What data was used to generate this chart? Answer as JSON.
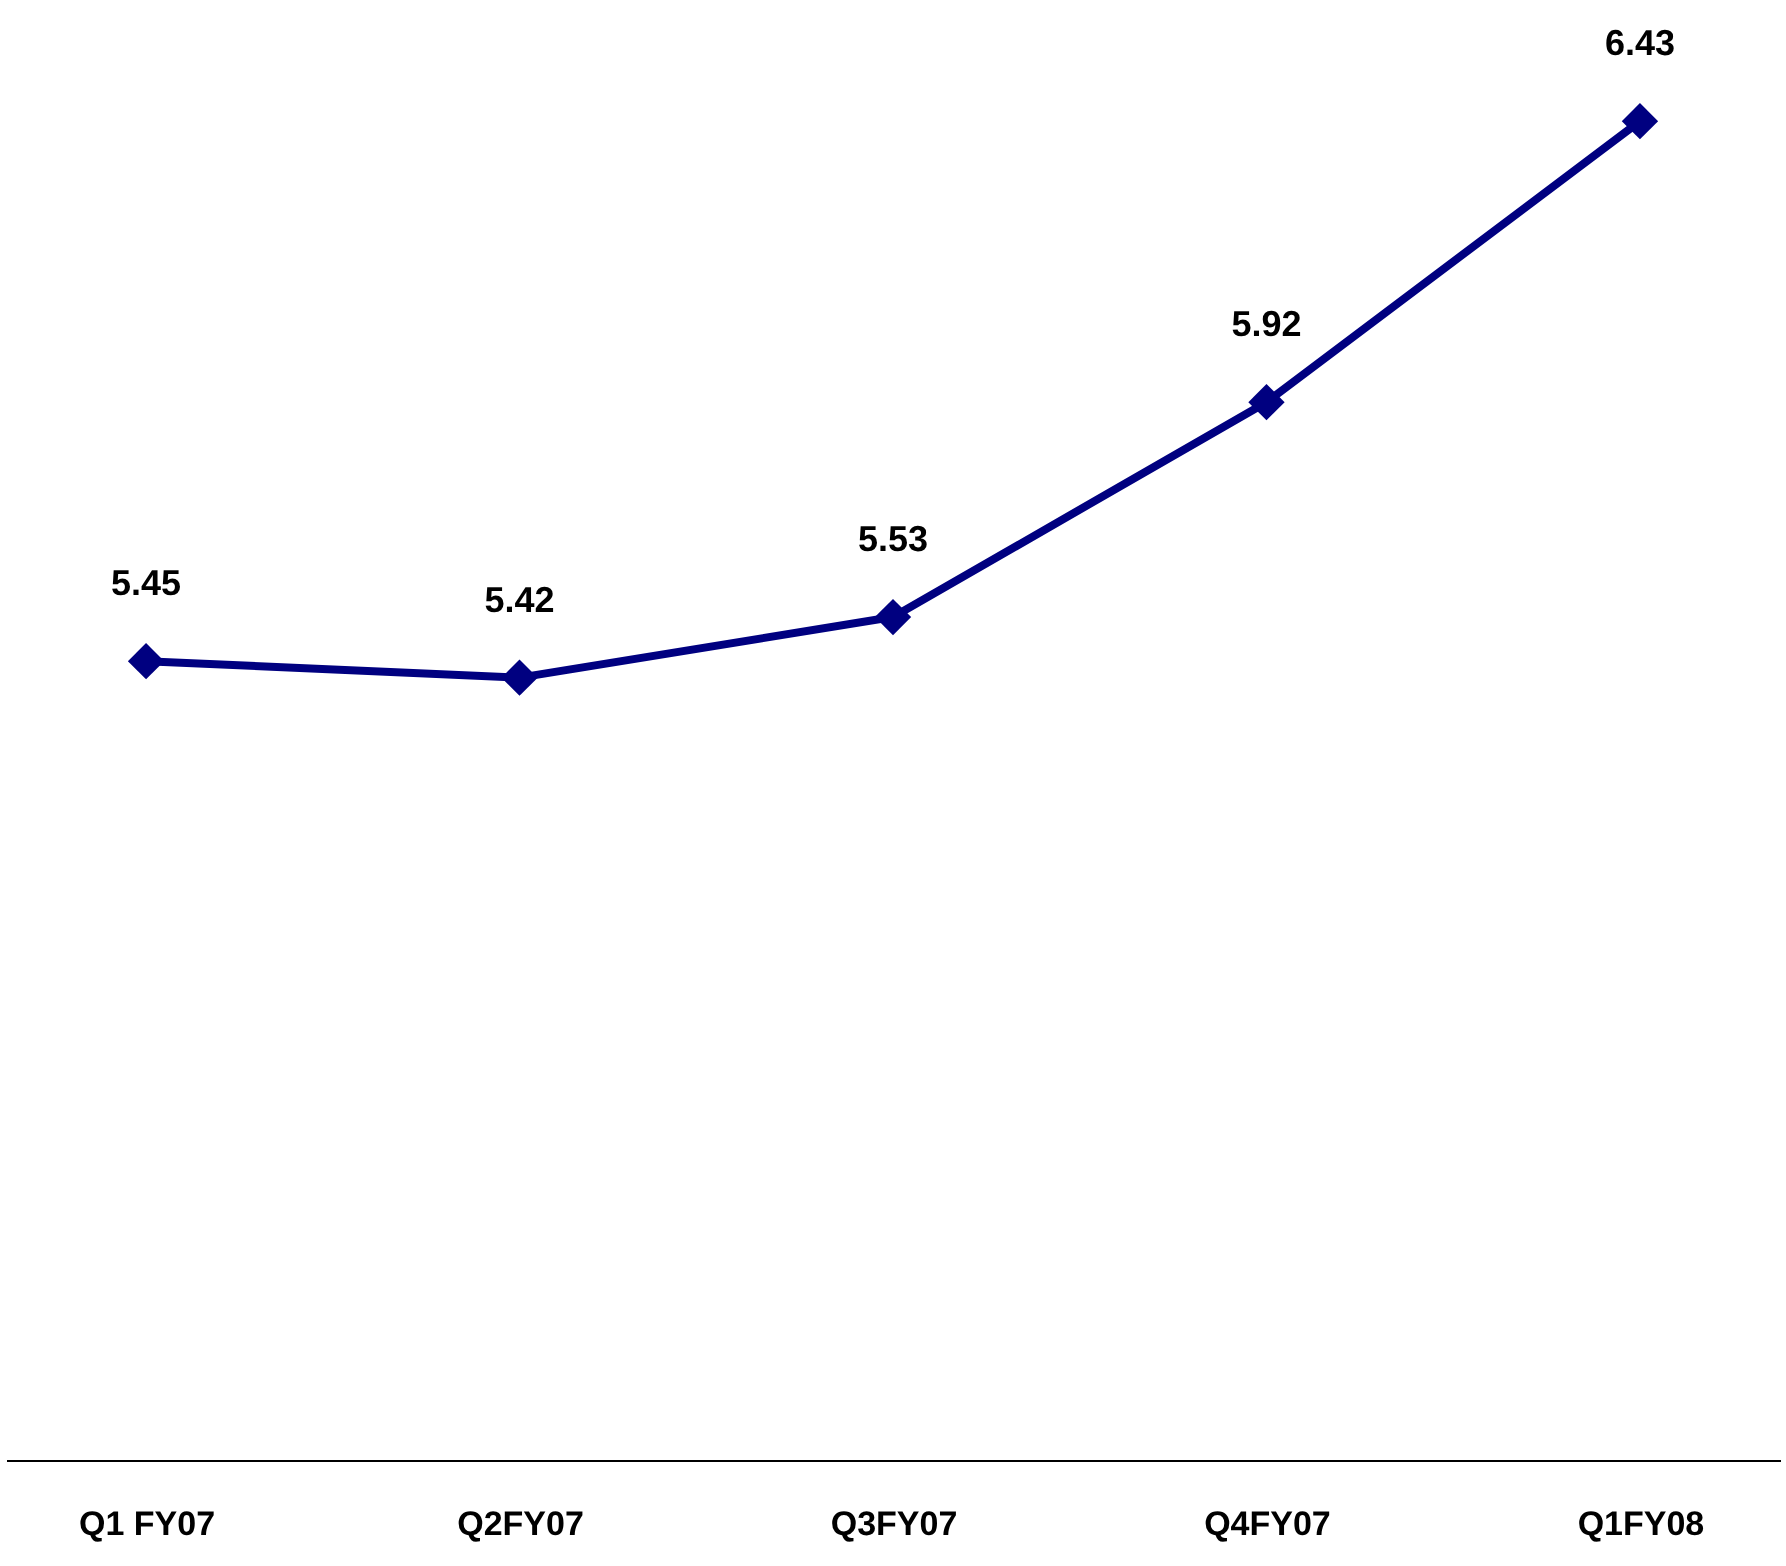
{
  "chart_data": {
    "type": "line",
    "categories": [
      "Q1 FY07",
      "Q2FY07",
      "Q3FY07",
      "Q4FY07",
      "Q1FY08"
    ],
    "series": [
      {
        "color": "#000080",
        "values": [
          5.45,
          5.42,
          5.53,
          5.92,
          6.43
        ]
      }
    ],
    "ylim": [
      4.0,
      6.65
    ],
    "tick_labels": "x",
    "grid": false,
    "marker": "diamond",
    "line_style": "solid",
    "data_labels": true
  }
}
